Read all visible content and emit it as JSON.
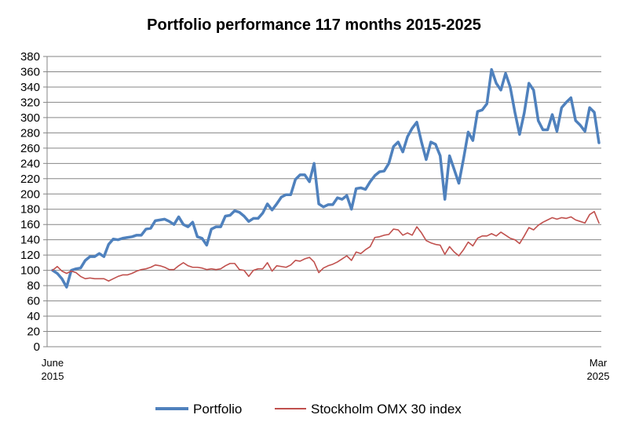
{
  "chart_data": {
    "type": "line",
    "title": "Portfolio performance 117 months 2015-2025",
    "xlabel": "",
    "ylabel": "",
    "x_tick_labels": [
      {
        "month": "June",
        "year": "2015"
      },
      {
        "month": "Mar",
        "year": "2025"
      }
    ],
    "ylim": [
      0,
      380
    ],
    "y_ticks": [
      0,
      20,
      40,
      60,
      80,
      100,
      120,
      140,
      160,
      180,
      200,
      220,
      240,
      260,
      280,
      300,
      320,
      340,
      360,
      380
    ],
    "grid": "horizontal",
    "legend_position": "bottom",
    "series": [
      {
        "name": "Portfolio",
        "color": "#4F81BD",
        "values": [
          100,
          96,
          89,
          78,
          100,
          102,
          103,
          113,
          118,
          118,
          122,
          118,
          134,
          141,
          140,
          142,
          143,
          144,
          146,
          146,
          154,
          155,
          165,
          166,
          167,
          164,
          160,
          170,
          160,
          157,
          163,
          144,
          142,
          133,
          154,
          157,
          157,
          171,
          172,
          178,
          176,
          171,
          164,
          168,
          168,
          175,
          187,
          179,
          187,
          196,
          199,
          199,
          219,
          225,
          225,
          216,
          240,
          187,
          183,
          186,
          186,
          195,
          193,
          198,
          180,
          207,
          208,
          206,
          216,
          224,
          229,
          230,
          240,
          262,
          268,
          255,
          275,
          286,
          294,
          268,
          245,
          268,
          265,
          250,
          193,
          250,
          232,
          214,
          246,
          281,
          270,
          308,
          310,
          318,
          363,
          345,
          336,
          358,
          340,
          307,
          278,
          306,
          345,
          336,
          296,
          284,
          284,
          304,
          282,
          313,
          320,
          326,
          296,
          290,
          282,
          313,
          307,
          267
        ],
        "stroke_width": 3.5
      },
      {
        "name": "Stockholm OMX 30 index",
        "color": "#C0504D",
        "values": [
          100,
          105,
          99,
          96,
          99,
          97,
          92,
          89,
          90,
          89,
          89,
          89,
          86,
          89,
          92,
          94,
          94,
          96,
          99,
          101,
          102,
          104,
          107,
          106,
          104,
          101,
          101,
          106,
          110,
          106,
          104,
          104,
          103,
          101,
          102,
          101,
          102,
          106,
          109,
          109,
          101,
          100,
          92,
          100,
          102,
          102,
          110,
          99,
          106,
          105,
          104,
          107,
          113,
          112,
          115,
          117,
          111,
          97,
          103,
          106,
          108,
          111,
          115,
          119,
          113,
          124,
          122,
          127,
          131,
          143,
          144,
          146,
          147,
          154,
          153,
          146,
          149,
          146,
          157,
          149,
          139,
          136,
          134,
          133,
          121,
          131,
          124,
          119,
          127,
          137,
          132,
          142,
          145,
          145,
          148,
          145,
          150,
          146,
          142,
          140,
          135,
          145,
          156,
          153,
          159,
          163,
          166,
          169,
          167,
          169,
          168,
          170,
          166,
          164,
          162,
          173,
          177,
          162
        ],
        "stroke_width": 1.6
      }
    ]
  }
}
